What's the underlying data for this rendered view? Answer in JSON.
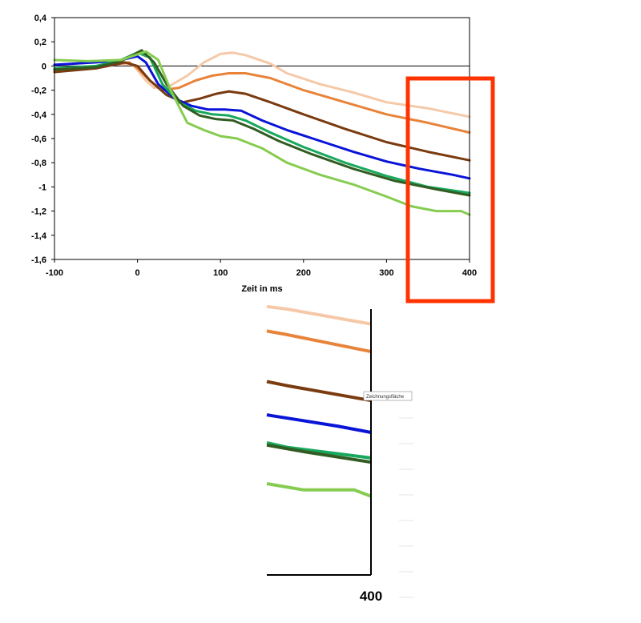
{
  "chart_data": {
    "type": "line",
    "title": "",
    "xlabel": "Zeit in ms",
    "ylabel": "",
    "xlim": [
      -100,
      400
    ],
    "ylim": [
      -1.6,
      0.4
    ],
    "x_ticks": [
      "-100",
      "0",
      "100",
      "200",
      "300",
      "400"
    ],
    "y_ticks": [
      "0,4",
      "0,2",
      "0",
      "-0,2",
      "-0,4",
      "-0,6",
      "-0,8",
      "-1",
      "-1,2",
      "-1,4",
      "-1,6"
    ],
    "series": [
      {
        "name": "peach",
        "color": "#f5c9a8",
        "points": [
          [
            -100,
            -0.03
          ],
          [
            -60,
            -0.01
          ],
          [
            -20,
            0.02
          ],
          [
            -5,
            0.01
          ],
          [
            10,
            -0.12
          ],
          [
            20,
            -0.18
          ],
          [
            40,
            -0.16
          ],
          [
            60,
            -0.08
          ],
          [
            80,
            0.03
          ],
          [
            100,
            0.1
          ],
          [
            115,
            0.11
          ],
          [
            130,
            0.09
          ],
          [
            160,
            0.02
          ],
          [
            180,
            -0.06
          ],
          [
            220,
            -0.15
          ],
          [
            260,
            -0.22
          ],
          [
            300,
            -0.3
          ],
          [
            350,
            -0.35
          ],
          [
            400,
            -0.42
          ]
        ]
      },
      {
        "name": "orange",
        "color": "#e8843a",
        "points": [
          [
            -100,
            -0.04
          ],
          [
            -50,
            -0.01
          ],
          [
            -10,
            0.03
          ],
          [
            0,
            -0.02
          ],
          [
            15,
            -0.12
          ],
          [
            30,
            -0.2
          ],
          [
            50,
            -0.18
          ],
          [
            70,
            -0.12
          ],
          [
            90,
            -0.08
          ],
          [
            110,
            -0.06
          ],
          [
            130,
            -0.06
          ],
          [
            160,
            -0.1
          ],
          [
            200,
            -0.2
          ],
          [
            250,
            -0.3
          ],
          [
            300,
            -0.4
          ],
          [
            350,
            -0.47
          ],
          [
            400,
            -0.55
          ]
        ]
      },
      {
        "name": "brown",
        "color": "#7a3b10",
        "points": [
          [
            -100,
            -0.05
          ],
          [
            -50,
            -0.02
          ],
          [
            -15,
            0.03
          ],
          [
            0,
            0.0
          ],
          [
            15,
            -0.12
          ],
          [
            35,
            -0.24
          ],
          [
            55,
            -0.3
          ],
          [
            75,
            -0.27
          ],
          [
            95,
            -0.23
          ],
          [
            110,
            -0.21
          ],
          [
            130,
            -0.23
          ],
          [
            160,
            -0.3
          ],
          [
            200,
            -0.4
          ],
          [
            250,
            -0.52
          ],
          [
            300,
            -0.63
          ],
          [
            350,
            -0.71
          ],
          [
            400,
            -0.78
          ]
        ]
      },
      {
        "name": "blue",
        "color": "#0a14d8",
        "points": [
          [
            -100,
            0.01
          ],
          [
            -50,
            0.03
          ],
          [
            -20,
            0.05
          ],
          [
            0,
            0.08
          ],
          [
            10,
            0.03
          ],
          [
            25,
            -0.15
          ],
          [
            45,
            -0.27
          ],
          [
            65,
            -0.33
          ],
          [
            85,
            -0.36
          ],
          [
            105,
            -0.36
          ],
          [
            125,
            -0.37
          ],
          [
            150,
            -0.45
          ],
          [
            180,
            -0.53
          ],
          [
            220,
            -0.62
          ],
          [
            260,
            -0.71
          ],
          [
            300,
            -0.79
          ],
          [
            340,
            -0.85
          ],
          [
            380,
            -0.9
          ],
          [
            400,
            -0.93
          ]
        ]
      },
      {
        "name": "green",
        "color": "#18a85c",
        "points": [
          [
            -100,
            -0.02
          ],
          [
            -50,
            0.0
          ],
          [
            -20,
            0.05
          ],
          [
            0,
            0.11
          ],
          [
            15,
            0.07
          ],
          [
            30,
            -0.15
          ],
          [
            50,
            -0.3
          ],
          [
            70,
            -0.37
          ],
          [
            90,
            -0.4
          ],
          [
            110,
            -0.41
          ],
          [
            130,
            -0.45
          ],
          [
            160,
            -0.55
          ],
          [
            200,
            -0.67
          ],
          [
            250,
            -0.8
          ],
          [
            300,
            -0.91
          ],
          [
            350,
            -1.0
          ],
          [
            400,
            -1.05
          ]
        ]
      },
      {
        "name": "darkgreen",
        "color": "#335c22",
        "points": [
          [
            -100,
            -0.03
          ],
          [
            -50,
            -0.01
          ],
          [
            -20,
            0.04
          ],
          [
            5,
            0.13
          ],
          [
            20,
            0.03
          ],
          [
            35,
            -0.15
          ],
          [
            55,
            -0.33
          ],
          [
            75,
            -0.41
          ],
          [
            95,
            -0.44
          ],
          [
            115,
            -0.45
          ],
          [
            140,
            -0.52
          ],
          [
            170,
            -0.62
          ],
          [
            210,
            -0.73
          ],
          [
            260,
            -0.85
          ],
          [
            310,
            -0.95
          ],
          [
            360,
            -1.02
          ],
          [
            400,
            -1.07
          ]
        ]
      },
      {
        "name": "lightgreen",
        "color": "#86cc50",
        "points": [
          [
            -100,
            0.05
          ],
          [
            -60,
            0.04
          ],
          [
            -20,
            0.05
          ],
          [
            10,
            0.12
          ],
          [
            25,
            0.05
          ],
          [
            40,
            -0.2
          ],
          [
            60,
            -0.47
          ],
          [
            80,
            -0.53
          ],
          [
            100,
            -0.58
          ],
          [
            120,
            -0.6
          ],
          [
            150,
            -0.68
          ],
          [
            180,
            -0.8
          ],
          [
            220,
            -0.9
          ],
          [
            260,
            -0.98
          ],
          [
            300,
            -1.08
          ],
          [
            330,
            -1.16
          ],
          [
            360,
            -1.2
          ],
          [
            390,
            -1.2
          ],
          [
            400,
            -1.23
          ]
        ]
      }
    ],
    "zoom": {
      "x_tick": "400",
      "x_range": [
        338,
        400
      ],
      "y_range": [
        -1.6,
        -0.35
      ],
      "tooltip": "Zeichnungsfläche"
    }
  }
}
